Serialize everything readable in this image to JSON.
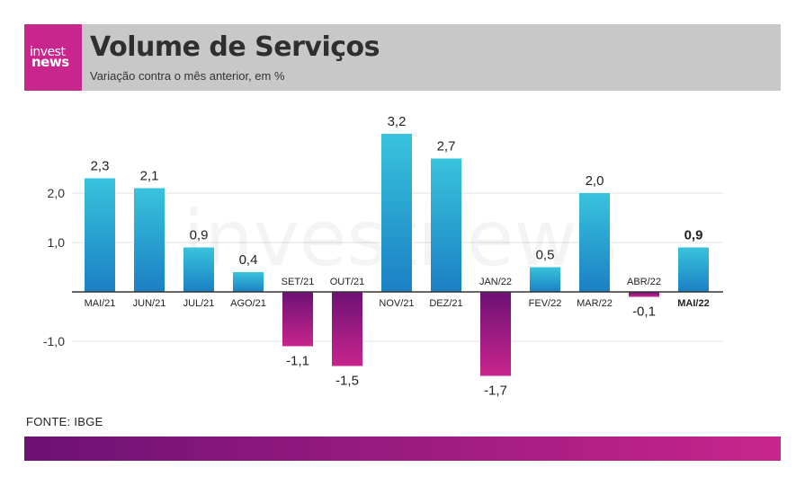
{
  "header": {
    "logo_line1": "invest",
    "logo_line2": "news",
    "title": "Volume de Serviços",
    "subtitle": "Variação contra o mês anterior, em %"
  },
  "footer": {
    "source": "FONTE: IBGE"
  },
  "watermark": "investnews",
  "colors": {
    "positive_top": "#38c3dd",
    "positive_bottom": "#1b80c4",
    "negative_top": "#6d1174",
    "negative_bottom": "#c8258d",
    "header_bg": "#c8c8c8",
    "logo_bg": "#c8258d"
  },
  "chart_data": {
    "type": "bar",
    "categories": [
      "MAI/21",
      "JUN/21",
      "JUL/21",
      "AGO/21",
      "SET/21",
      "OUT/21",
      "NOV/21",
      "DEZ/21",
      "JAN/22",
      "FEV/22",
      "MAR/22",
      "ABR/22",
      "MAI/22"
    ],
    "values": [
      2.3,
      2.1,
      0.9,
      0.4,
      -1.1,
      -1.5,
      3.2,
      2.7,
      -1.7,
      0.5,
      2.0,
      -0.1,
      0.9
    ],
    "value_labels": [
      "2,3",
      "2,1",
      "0,9",
      "0,4",
      "-1,1",
      "-1,5",
      "3,2",
      "2,7",
      "-1,7",
      "0,5",
      "2,0",
      "-0,1",
      "0,9"
    ],
    "highlight_index": 12,
    "yticks": [
      2.0,
      1.0,
      -1.0
    ],
    "ytick_labels": [
      "2,0",
      "1,0",
      "-1,0"
    ],
    "ylim": [
      -2.0,
      3.5
    ],
    "grid": true,
    "xlabel": "",
    "ylabel": ""
  }
}
